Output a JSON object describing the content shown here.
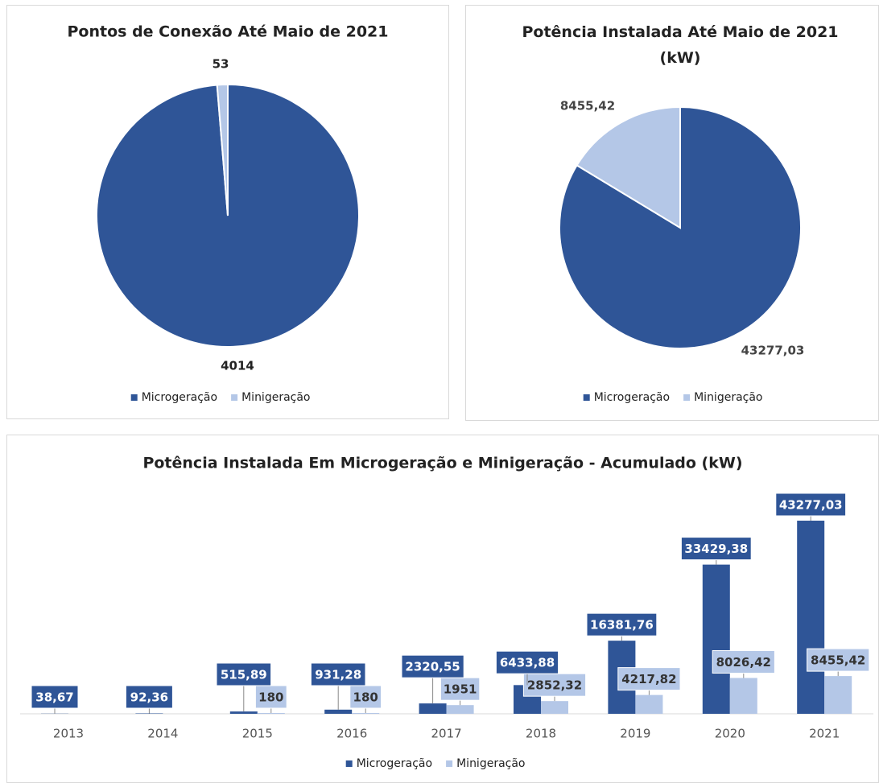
{
  "chart_data": [
    {
      "type": "pie",
      "title": "Pontos de Conexão Até Maio de 2021",
      "categories": [
        "Microgeração",
        "Minigeração"
      ],
      "values": [
        4014,
        53
      ],
      "colors": [
        "#2f5597",
        "#b4c7e7"
      ],
      "legend": "bottom"
    },
    {
      "type": "pie",
      "title": "Potência Instalada Até Maio de 2021 (kW)",
      "categories": [
        "Microgeração",
        "Minigeração"
      ],
      "values": [
        43277.03,
        8455.42
      ],
      "value_labels": [
        "43277,03",
        "8455,42"
      ],
      "colors": [
        "#2f5597",
        "#b4c7e7"
      ],
      "legend": "bottom"
    },
    {
      "type": "bar",
      "title": "Potência Instalada Em Microgeração e Minigeração - Acumulado (kW)",
      "categories": [
        "2013",
        "2014",
        "2015",
        "2016",
        "2017",
        "2018",
        "2019",
        "2020",
        "2021"
      ],
      "series": [
        {
          "name": "Microgeração",
          "color": "#2f5597",
          "values": [
            38.67,
            92.36,
            515.89,
            931.28,
            2320.55,
            6433.88,
            16381.76,
            33429.38,
            43277.03
          ],
          "value_labels": [
            "38,67",
            "92,36",
            "515,89",
            "931,28",
            "2320,55",
            "6433,88",
            "16381,76",
            "33429,38",
            "43277,03"
          ]
        },
        {
          "name": "Minigeração",
          "color": "#b4c7e7",
          "values": [
            null,
            null,
            180,
            180,
            1951,
            2852.32,
            4217.82,
            8026.42,
            8455.42
          ],
          "value_labels": [
            null,
            null,
            "180",
            "180",
            "1951",
            "2852,32",
            "4217,82",
            "8026,42",
            "8455,42"
          ]
        }
      ],
      "legend": "bottom"
    }
  ]
}
